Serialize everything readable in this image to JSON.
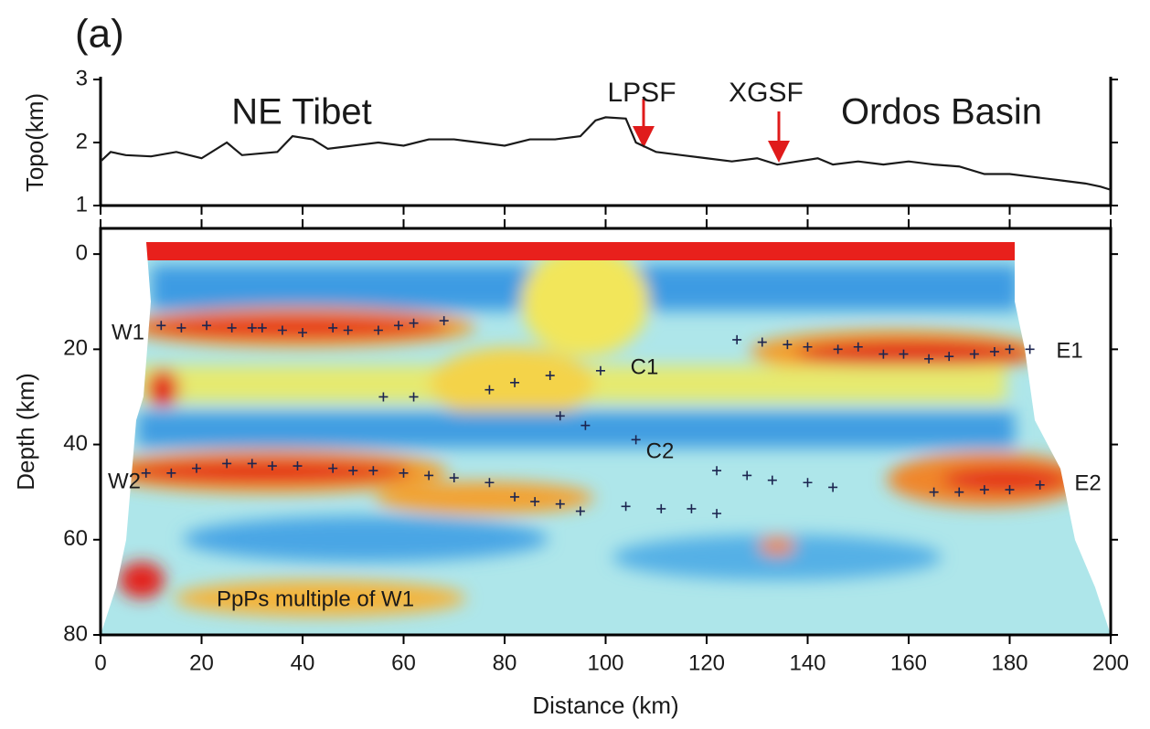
{
  "chart_data": [
    {
      "type": "line",
      "panel_label": "(a)",
      "ylabel": "Topo(km)",
      "annotations": [
        "NE Tibet",
        "Ordos Basin",
        "LPSF",
        "XGSF"
      ],
      "x": [
        0,
        2,
        5,
        10,
        15,
        20,
        25,
        28,
        35,
        38,
        42,
        45,
        50,
        55,
        60,
        65,
        70,
        75,
        80,
        85,
        90,
        95,
        98,
        100,
        104,
        106,
        110,
        115,
        120,
        125,
        130,
        134,
        138,
        142,
        145,
        150,
        155,
        160,
        165,
        170,
        175,
        180,
        185,
        190,
        195,
        198,
        200
      ],
      "y": [
        1.7,
        1.85,
        1.8,
        1.78,
        1.85,
        1.75,
        2.0,
        1.8,
        1.85,
        2.1,
        2.05,
        1.9,
        1.95,
        2.0,
        1.95,
        2.05,
        2.05,
        2.0,
        1.95,
        2.05,
        2.05,
        2.1,
        2.35,
        2.4,
        2.38,
        2.0,
        1.85,
        1.8,
        1.75,
        1.7,
        1.75,
        1.65,
        1.7,
        1.75,
        1.65,
        1.7,
        1.65,
        1.7,
        1.65,
        1.62,
        1.5,
        1.5,
        1.45,
        1.4,
        1.35,
        1.3,
        1.25
      ],
      "color": "#1a1a1a",
      "xlim": [
        0,
        200
      ],
      "xticks": [
        0,
        20,
        40,
        60,
        80,
        100,
        120,
        140,
        160,
        180,
        200
      ],
      "ylim": [
        1,
        3
      ],
      "yticks": [
        1,
        2,
        3
      ]
    },
    {
      "type": "scatter",
      "xlabel": "Distance (km)",
      "ylabel": "Depth (km)",
      "annotations": [
        "W1",
        "C1",
        "C2",
        "E1",
        "W2",
        "E2",
        "PpPs multiple of W1"
      ],
      "x": [
        12,
        16,
        21,
        26,
        30,
        32,
        36,
        40,
        46,
        49,
        55,
        59,
        62,
        68,
        56,
        62,
        77,
        82,
        89,
        99,
        91,
        96,
        106,
        126,
        131,
        136,
        140,
        146,
        150,
        155,
        159,
        164,
        168,
        173,
        177,
        180,
        184,
        9,
        14,
        19,
        25,
        30,
        34,
        39,
        46,
        50,
        54,
        60,
        65,
        70,
        77,
        82,
        86,
        91,
        95,
        104,
        111,
        117,
        122,
        122,
        128,
        133,
        140,
        145,
        165,
        170,
        175,
        180,
        186
      ],
      "y": [
        15,
        15.5,
        15,
        15.5,
        15.5,
        15.5,
        16,
        16.5,
        15.5,
        16,
        16,
        15,
        14.5,
        14,
        30,
        30,
        28.5,
        27,
        25.5,
        24.5,
        34,
        36,
        39,
        18,
        18.5,
        19,
        19.5,
        20,
        19.5,
        21,
        21,
        22,
        21.5,
        21,
        20.5,
        20,
        20,
        46,
        46,
        45,
        44,
        44,
        44.5,
        44.5,
        45,
        45.5,
        45.5,
        46,
        46.5,
        47,
        48,
        51,
        52,
        52.5,
        54,
        53,
        53.5,
        53.5,
        54.5,
        45.5,
        46.5,
        47.5,
        48,
        49,
        50,
        50,
        49.5,
        49.5,
        48.5
      ],
      "color": "#1c2550",
      "xlim": [
        0,
        200
      ],
      "xticks": [
        0,
        20,
        40,
        60,
        80,
        100,
        120,
        140,
        160,
        180,
        200
      ],
      "ylim": [
        80,
        -5.4
      ],
      "yticks": [
        0,
        20,
        40,
        60,
        80
      ]
    }
  ]
}
